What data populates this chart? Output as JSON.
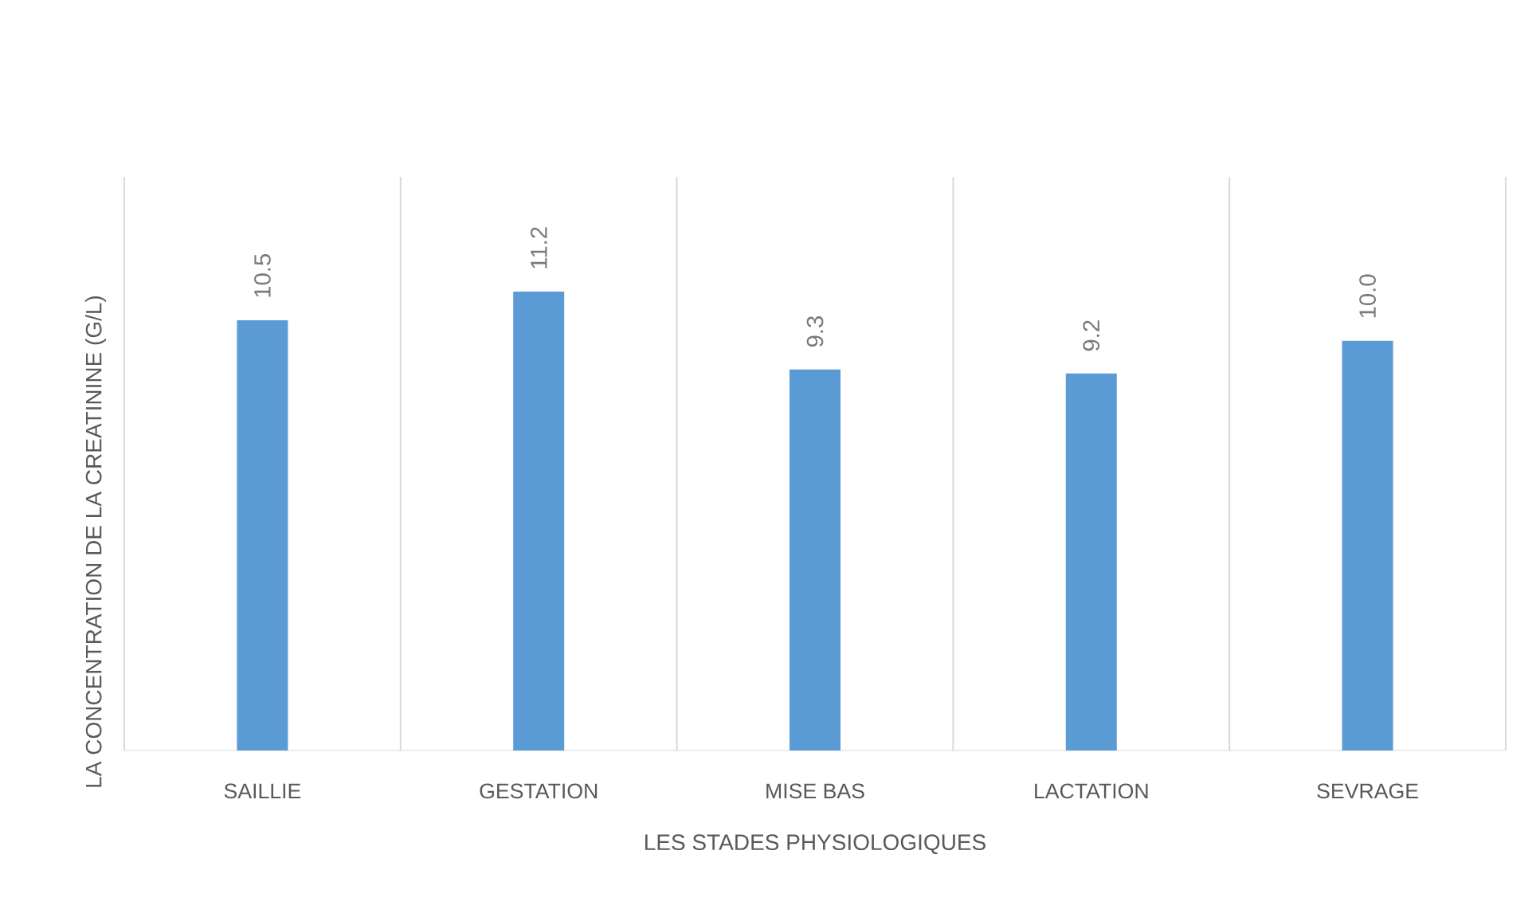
{
  "chart_data": {
    "type": "bar",
    "xlabel": "LES STADES PHYSIOLOGIQUES",
    "ylabel": "LA CONCENTRATION DE LA CREATININE (G/L)",
    "categories": [
      "SAILLIE",
      "GESTATION",
      "MISE BAS",
      "LACTATION",
      "SEVRAGE"
    ],
    "values": [
      10.5,
      11.2,
      9.3,
      9.2,
      10.0
    ],
    "value_labels": [
      "10.5",
      "11.2",
      "9.3",
      "9.2",
      "10.0"
    ],
    "color": "#5b9bd5",
    "ylim": [
      0,
      14
    ],
    "tick_labels": "x",
    "grid": "x"
  }
}
